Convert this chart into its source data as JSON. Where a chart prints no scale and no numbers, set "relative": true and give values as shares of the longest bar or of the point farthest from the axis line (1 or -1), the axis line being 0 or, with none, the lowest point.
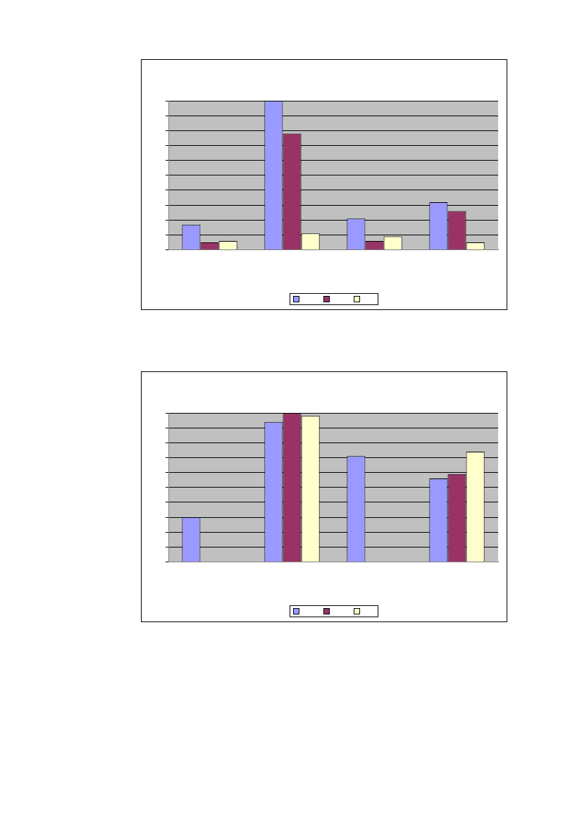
{
  "chart_data": [
    {
      "type": "bar",
      "relative": true,
      "categories": [
        null,
        null,
        null,
        null
      ],
      "grid": "y",
      "series": [
        {
          "color": "#9999ff",
          "values": [
            0.17,
            1,
            0.21,
            0.32
          ]
        },
        {
          "color": "#993366",
          "values": [
            0.05,
            0.78,
            0.06,
            0.26
          ]
        },
        {
          "color": "#ffffcc",
          "values": [
            0.06,
            0.11,
            0.09,
            0.05
          ]
        }
      ]
    },
    {
      "type": "bar",
      "relative": true,
      "categories": [
        null,
        null,
        null,
        null
      ],
      "grid": "y",
      "series": [
        {
          "color": "#9999ff",
          "values": [
            0.3,
            0.94,
            0.71,
            0.56
          ]
        },
        {
          "color": "#993366",
          "values": [
            null,
            1,
            null,
            0.59
          ]
        },
        {
          "color": "#ffffcc",
          "values": [
            null,
            0.98,
            null,
            0.74
          ]
        }
      ]
    }
  ]
}
